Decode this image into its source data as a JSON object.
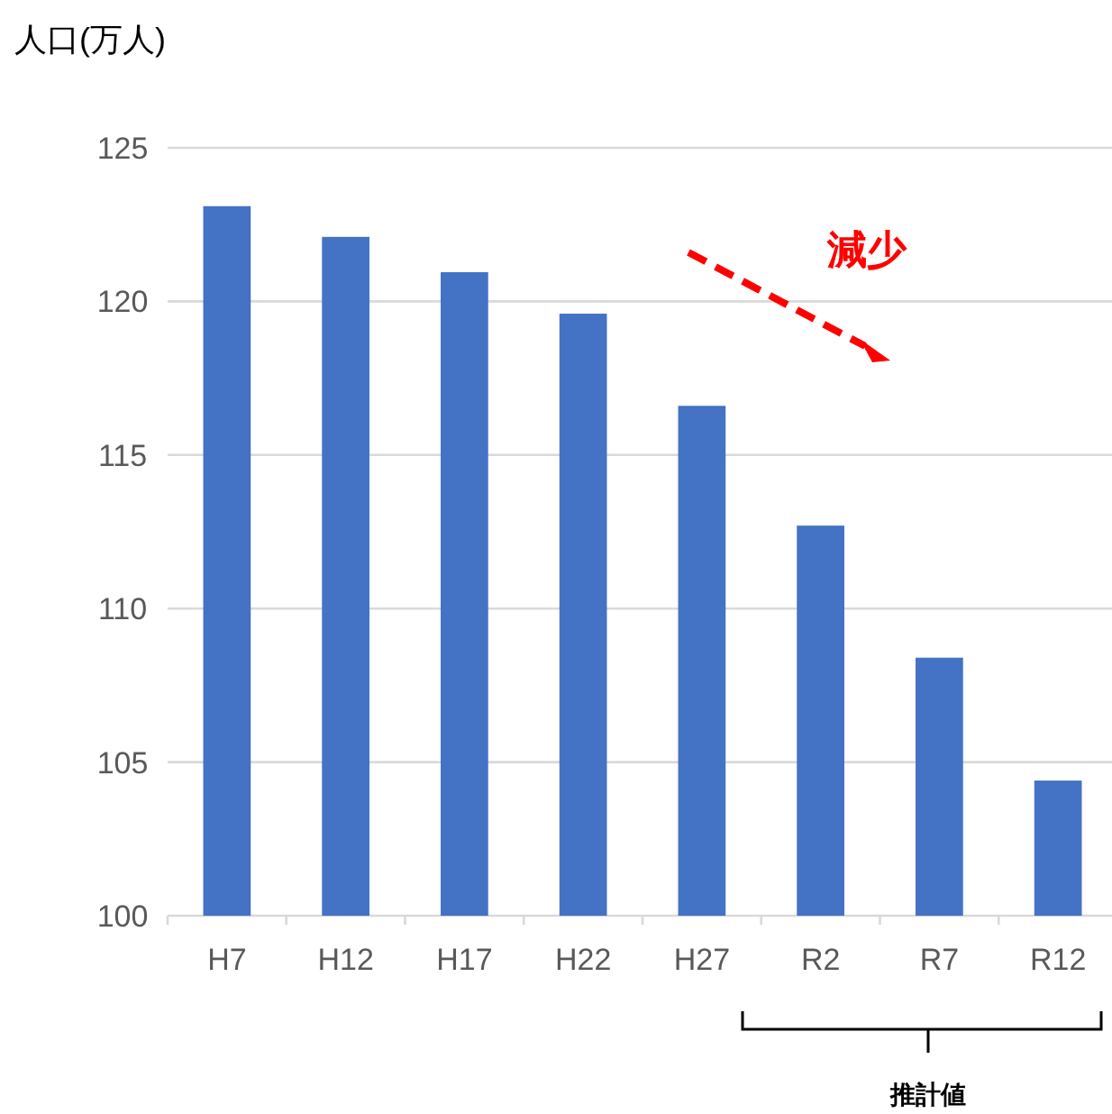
{
  "chart_data": {
    "type": "bar",
    "ylabel": "人口(万人)",
    "categories": [
      "H7",
      "H12",
      "H17",
      "H22",
      "H27",
      "R2",
      "R7",
      "R12"
    ],
    "values": [
      123.1,
      122.1,
      120.95,
      119.6,
      116.6,
      112.7,
      108.4,
      104.4
    ],
    "color": "#4472c4",
    "ylim": [
      100,
      125
    ],
    "yticks": [
      100,
      105,
      110,
      115,
      120,
      125
    ],
    "grid": "y",
    "annotations": [
      "減少",
      "推計値"
    ]
  }
}
